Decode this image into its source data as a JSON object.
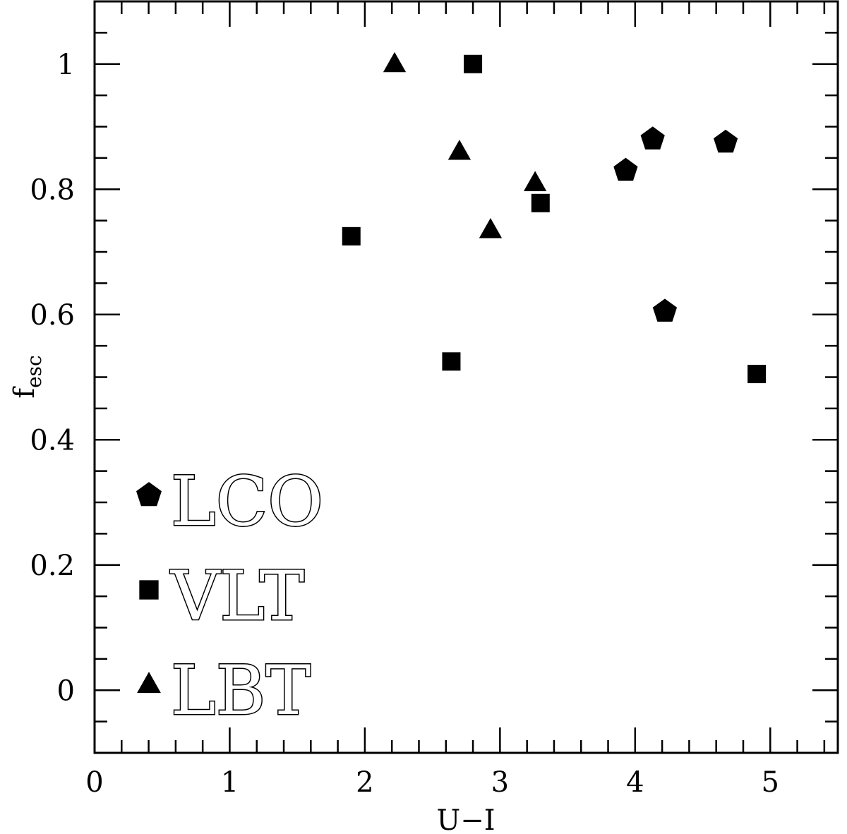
{
  "chart_data": {
    "type": "scatter",
    "xlabel": "U−I",
    "ylabel_main": "f",
    "ylabel_sub": "esc",
    "xlim": [
      0,
      5.5
    ],
    "ylim": [
      -0.1,
      1.1
    ],
    "x_ticks": [
      "0",
      "1",
      "2",
      "3",
      "4",
      "5"
    ],
    "y_ticks": [
      "0",
      "0.2",
      "0.4",
      "0.6",
      "0.8",
      "1"
    ],
    "series": [
      {
        "name": "LCO",
        "marker": "pentagon",
        "points": [
          [
            3.93,
            0.83
          ],
          [
            4.13,
            0.88
          ],
          [
            4.22,
            0.605
          ],
          [
            4.67,
            0.875
          ]
        ]
      },
      {
        "name": "VLT",
        "marker": "square",
        "points": [
          [
            1.9,
            0.725
          ],
          [
            2.64,
            0.525
          ],
          [
            2.8,
            1.0
          ],
          [
            3.3,
            0.778
          ],
          [
            4.9,
            0.505
          ]
        ]
      },
      {
        "name": "LBT",
        "marker": "triangle",
        "points": [
          [
            2.22,
            1.0
          ],
          [
            2.7,
            0.86
          ],
          [
            2.93,
            0.735
          ],
          [
            3.26,
            0.81
          ]
        ]
      }
    ],
    "legend_position": "bottom-left",
    "grid": false,
    "colors": {
      "marker": "#000000",
      "background": "#ffffff"
    }
  }
}
